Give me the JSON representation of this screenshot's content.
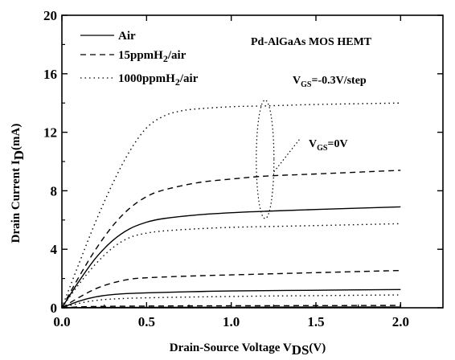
{
  "chart_data": {
    "type": "line",
    "title": "",
    "xlabel": {
      "main": "Drain-Source Voltage V",
      "sub": "DS",
      "tail": "(V)"
    },
    "ylabel": {
      "main": "Drain Current I",
      "sub": "D",
      "tail": "(mA)"
    },
    "xlim": [
      0.0,
      2.25
    ],
    "ylim": [
      0,
      20
    ],
    "xticks": [
      0.0,
      0.5,
      1.0,
      1.5,
      2.0
    ],
    "xtick_labels": [
      "0.0",
      "0.5",
      "1.0",
      "1.5",
      "2.0"
    ],
    "yticks": [
      0,
      4,
      8,
      12,
      16,
      20
    ],
    "ytick_labels": [
      "0",
      "4",
      "8",
      "12",
      "16",
      "20"
    ],
    "grid": false,
    "legend": {
      "placement": "top-left",
      "entries": [
        {
          "name": "Air",
          "label_main": "Air",
          "label_sub": "",
          "label_tail": "",
          "dash": "solid"
        },
        {
          "name": "15ppmH2/air",
          "label_main": "15ppmH",
          "label_sub": "2",
          "label_tail": "/air",
          "dash": "dashed"
        },
        {
          "name": "1000ppmH2/air",
          "label_main": "1000ppmH",
          "label_sub": "2",
          "label_tail": "/air",
          "dash": "dotted"
        }
      ]
    },
    "annotations": {
      "device": "Pd-AlGaAs MOS HEMT",
      "step": {
        "main": "V",
        "sub": "GS",
        "tail": "=-0.3V/step"
      },
      "top_curve": {
        "main": "V",
        "sub": "GS",
        "tail": "=0V"
      }
    },
    "series": [
      {
        "name": "Air, VGS=0V",
        "dash": "solid",
        "x": [
          0,
          0.1,
          0.2,
          0.3,
          0.4,
          0.5,
          0.6,
          0.8,
          1.0,
          1.2,
          1.5,
          2.0
        ],
        "y": [
          0,
          1.8,
          3.4,
          4.6,
          5.4,
          5.85,
          6.1,
          6.35,
          6.5,
          6.6,
          6.72,
          6.9
        ]
      },
      {
        "name": "15ppmH2/air, VGS=0V",
        "dash": "dashed",
        "x": [
          0,
          0.1,
          0.2,
          0.3,
          0.4,
          0.5,
          0.6,
          0.8,
          1.0,
          1.2,
          1.5,
          2.0
        ],
        "y": [
          0,
          2.1,
          4.0,
          5.6,
          6.8,
          7.6,
          8.05,
          8.55,
          8.8,
          9.0,
          9.15,
          9.4
        ]
      },
      {
        "name": "1000ppmH2/air, VGS=0V",
        "dash": "dotted",
        "x": [
          0,
          0.1,
          0.2,
          0.3,
          0.4,
          0.5,
          0.6,
          0.7,
          0.8,
          1.0,
          1.2,
          1.5,
          2.0
        ],
        "y": [
          0,
          3.0,
          5.9,
          8.5,
          10.7,
          12.3,
          13.1,
          13.45,
          13.6,
          13.75,
          13.8,
          13.9,
          14.0
        ]
      },
      {
        "name": "1000ppmH2/air, VGS=-0.3V",
        "dash": "dotted",
        "x": [
          0,
          0.1,
          0.2,
          0.3,
          0.4,
          0.5,
          0.6,
          0.8,
          1.0,
          1.2,
          1.5,
          2.0
        ],
        "y": [
          0,
          1.6,
          3.0,
          4.1,
          4.8,
          5.1,
          5.25,
          5.4,
          5.5,
          5.55,
          5.62,
          5.75
        ]
      },
      {
        "name": "15ppmH2/air, VGS=-0.3V",
        "dash": "dashed",
        "x": [
          0,
          0.1,
          0.2,
          0.3,
          0.4,
          0.5,
          0.7,
          1.0,
          1.5,
          2.0
        ],
        "y": [
          0,
          0.7,
          1.3,
          1.7,
          1.95,
          2.05,
          2.15,
          2.25,
          2.4,
          2.55
        ]
      },
      {
        "name": "Air, VGS=-0.3V",
        "dash": "solid",
        "x": [
          0,
          0.1,
          0.2,
          0.3,
          0.4,
          0.5,
          0.7,
          1.0,
          1.5,
          2.0
        ],
        "y": [
          0,
          0.45,
          0.75,
          0.9,
          0.98,
          1.02,
          1.08,
          1.15,
          1.2,
          1.25
        ]
      },
      {
        "name": "1000ppmH2/air, VGS=-0.6V",
        "dash": "dotted",
        "x": [
          0,
          0.1,
          0.2,
          0.3,
          0.5,
          0.8,
          1.2,
          1.6,
          2.0
        ],
        "y": [
          0,
          0.3,
          0.5,
          0.6,
          0.68,
          0.74,
          0.8,
          0.84,
          0.88
        ]
      },
      {
        "name": "15ppmH2/air, VGS=-0.6V",
        "dash": "dashed",
        "x": [
          0,
          0.1,
          0.2,
          0.4,
          0.8,
          1.2,
          1.6,
          2.0
        ],
        "y": [
          0,
          0.06,
          0.09,
          0.11,
          0.13,
          0.14,
          0.15,
          0.16
        ]
      },
      {
        "name": "Air, VGS=-0.6V",
        "dash": "solid",
        "x": [
          0,
          0.2,
          0.5,
          1.0,
          1.5,
          2.0
        ],
        "y": [
          0,
          0.02,
          0.03,
          0.04,
          0.05,
          0.05
        ]
      }
    ]
  }
}
